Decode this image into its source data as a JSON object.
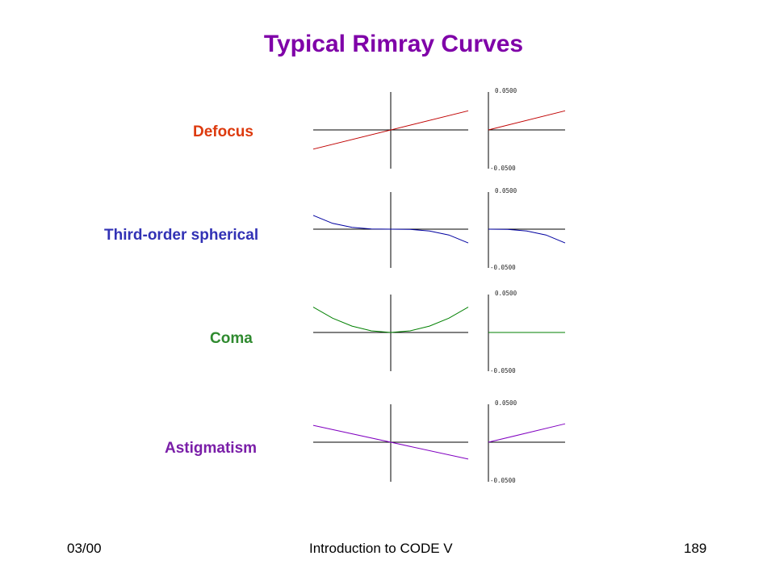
{
  "slide": {
    "title": "Typical Rimray Curves",
    "footer": {
      "left": "03/00",
      "center": "Introduction to CODE V",
      "right": "189"
    }
  },
  "tick_labels": {
    "top": "0.0500",
    "bottom": "-0.0500"
  },
  "rows": [
    {
      "label": "Defocus",
      "color": "#dd3a0e"
    },
    {
      "label": "Third-order spherical",
      "color": "#3232b5"
    },
    {
      "label": "Coma",
      "color": "#2f8a2f"
    },
    {
      "label": "Astigmatism",
      "color": "#7a1ea8"
    }
  ],
  "chart_data": [
    {
      "type": "line",
      "series_color": "#c00000",
      "ylim": [
        -0.05,
        0.05
      ],
      "panels": [
        {
          "x": [
            -1,
            1
          ],
          "y": [
            -0.025,
            0.025
          ]
        },
        {
          "x": [
            0,
            1
          ],
          "y": [
            0,
            0.025
          ]
        }
      ]
    },
    {
      "type": "line",
      "series_color": "#0000a0",
      "ylim": [
        -0.05,
        0.05
      ],
      "panels": [
        {
          "x": [
            -1,
            -0.75,
            -0.5,
            -0.25,
            0,
            0.25,
            0.5,
            0.75,
            1
          ],
          "y": [
            0.018,
            0.0076,
            0.0023,
            0.0003,
            0,
            -0.0003,
            -0.0023,
            -0.0076,
            -0.018
          ]
        },
        {
          "x": [
            0,
            0.25,
            0.5,
            0.75,
            1
          ],
          "y": [
            0,
            -0.0003,
            -0.0023,
            -0.0076,
            -0.018
          ]
        }
      ]
    },
    {
      "type": "line",
      "series_color": "#008000",
      "ylim": [
        -0.05,
        0.05
      ],
      "panels": [
        {
          "x": [
            -1,
            -0.75,
            -0.5,
            -0.25,
            0,
            0.25,
            0.5,
            0.75,
            1
          ],
          "y": [
            0.033,
            0.0186,
            0.0083,
            0.0021,
            0,
            0.0021,
            0.0083,
            0.0186,
            0.033
          ]
        },
        {
          "x": [
            0,
            1
          ],
          "y": [
            0,
            0
          ]
        }
      ]
    },
    {
      "type": "line",
      "series_color": "#8000c0",
      "ylim": [
        -0.05,
        0.05
      ],
      "panels": [
        {
          "x": [
            -1,
            1
          ],
          "y": [
            0.022,
            -0.022
          ]
        },
        {
          "x": [
            0,
            1
          ],
          "y": [
            0,
            0.024
          ]
        }
      ]
    }
  ]
}
